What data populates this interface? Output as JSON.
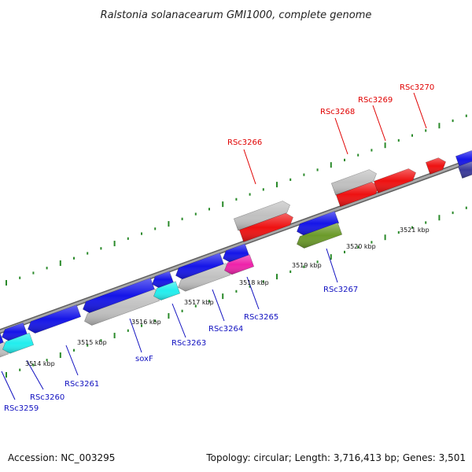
{
  "title": "Ralstonia solanacearum GMI1000, complete genome",
  "footer": {
    "accession": "Accession: NC_003295",
    "summary": "Topology: circular; Length: 3,716,413 bp; Genes: 3,501"
  },
  "kbp_labels": [
    "3514 kbp",
    "3515 kbp",
    "3516 kbp",
    "3517 kbp",
    "3518 kbp",
    "3519 kbp",
    "3520 kbp",
    "3521 kbp"
  ],
  "gene_labels": {
    "forward": [
      "RSc3266",
      "RSc3268",
      "RSc3269",
      "RSc3270"
    ],
    "reverse": [
      "RSc3259",
      "RSc3260",
      "RSc3261",
      "soxF",
      "RSc3263",
      "RSc3264",
      "RSc3265",
      "RSc3267"
    ]
  },
  "colors": {
    "forward_label": "#e00000",
    "reverse_label": "#1010c0",
    "backbone": "#808080",
    "ticks": "#2a8a2a",
    "blue": "#1515e8",
    "red": "#ee1111",
    "gray": "#c0c0c0",
    "cyan": "#22eeee",
    "magenta": "#ee22aa",
    "olive": "#6b9a2a",
    "navy": "#3a3a9a"
  }
}
